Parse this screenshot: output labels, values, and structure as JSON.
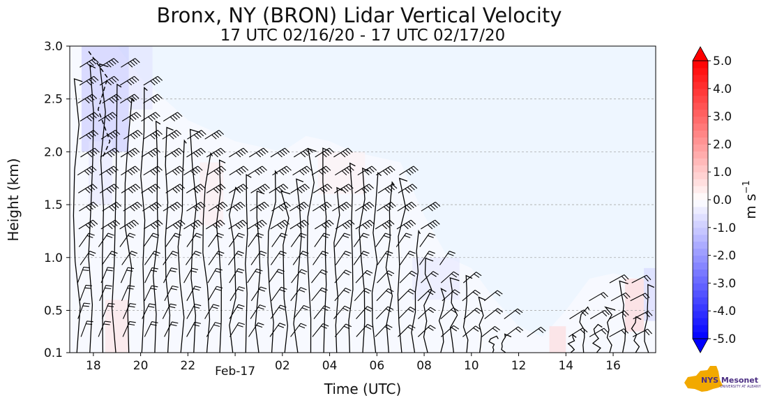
{
  "chart_data": {
    "type": "heatmap",
    "title": "Bronx, NY (BRON) Lidar Vertical Velocity",
    "subtitle": "17 UTC 02/16/20 - 17 UTC 02/17/20",
    "xlabel": "Time (UTC)",
    "ylabel": "Height (km)",
    "x_range_hours": [
      17,
      41.8
    ],
    "ylim": [
      0.1,
      3.0
    ],
    "x_ticks": [
      {
        "hour": 18,
        "label": "18"
      },
      {
        "hour": 20,
        "label": "20"
      },
      {
        "hour": 22,
        "label": "22"
      },
      {
        "hour": 24,
        "label": "Feb-17"
      },
      {
        "hour": 26,
        "label": "02"
      },
      {
        "hour": 28,
        "label": "04"
      },
      {
        "hour": 30,
        "label": "06"
      },
      {
        "hour": 32,
        "label": "08"
      },
      {
        "hour": 34,
        "label": "10"
      },
      {
        "hour": 36,
        "label": "12"
      },
      {
        "hour": 38,
        "label": "14"
      },
      {
        "hour": 40,
        "label": "16"
      }
    ],
    "y_ticks": [
      {
        "value": 0.1,
        "label": "0.1"
      },
      {
        "value": 0.5,
        "label": "0.5"
      },
      {
        "value": 1.0,
        "label": "1.0"
      },
      {
        "value": 1.5,
        "label": "1.5"
      },
      {
        "value": 2.0,
        "label": "2.0"
      },
      {
        "value": 2.5,
        "label": "2.5"
      },
      {
        "value": 3.0,
        "label": "3.0"
      }
    ],
    "grid": "horizontal dashed",
    "colorbar": {
      "label": "m s",
      "label_exponent": "−1",
      "range": [
        -5.0,
        5.0
      ],
      "extend": "both",
      "ticks": [
        {
          "value": 5.0,
          "label": "5.0"
        },
        {
          "value": 4.0,
          "label": "4.0"
        },
        {
          "value": 3.0,
          "label": "3.0"
        },
        {
          "value": 2.0,
          "label": "2.0"
        },
        {
          "value": 1.0,
          "label": "1.0"
        },
        {
          "value": 0.0,
          "label": "0.0"
        },
        {
          "value": -1.0,
          "label": "-1.0"
        },
        {
          "value": -2.0,
          "label": "-2.0"
        },
        {
          "value": -3.0,
          "label": "-3.0"
        },
        {
          "value": -4.0,
          "label": "-4.0"
        },
        {
          "value": -5.0,
          "label": "-5.0"
        }
      ],
      "colors": {
        "max": "#ff0000",
        "zero": "#ffffff",
        "min": "#0000ff"
      }
    },
    "data_top_km": [
      {
        "hour": 17.0,
        "top": 3.0
      },
      {
        "hour": 18.0,
        "top": 3.0
      },
      {
        "hour": 19.0,
        "top": 3.0
      },
      {
        "hour": 20.0,
        "top": 2.7
      },
      {
        "hour": 21.0,
        "top": 2.5
      },
      {
        "hour": 22.0,
        "top": 2.3
      },
      {
        "hour": 23.0,
        "top": 2.2
      },
      {
        "hour": 24.0,
        "top": 2.1
      },
      {
        "hour": 25.0,
        "top": 2.05
      },
      {
        "hour": 26.0,
        "top": 2.0
      },
      {
        "hour": 27.0,
        "top": 2.15
      },
      {
        "hour": 28.0,
        "top": 2.1
      },
      {
        "hour": 29.0,
        "top": 2.0
      },
      {
        "hour": 30.0,
        "top": 1.95
      },
      {
        "hour": 31.0,
        "top": 1.9
      },
      {
        "hour": 32.0,
        "top": 1.4
      },
      {
        "hour": 33.0,
        "top": 1.0
      },
      {
        "hour": 34.0,
        "top": 0.9
      },
      {
        "hour": 35.0,
        "top": 0.6
      },
      {
        "hour": 36.0,
        "top": 0.35
      },
      {
        "hour": 37.0,
        "top": 0.25
      },
      {
        "hour": 38.0,
        "top": 0.5
      },
      {
        "hour": 39.0,
        "top": 0.8
      },
      {
        "hour": 40.0,
        "top": 0.85
      },
      {
        "hour": 41.0,
        "top": 0.8
      },
      {
        "hour": 41.8,
        "top": 0.8
      }
    ],
    "velocity_regions": [
      {
        "h0": 17.5,
        "h1": 19.5,
        "z0": 2.0,
        "z1": 3.0,
        "w": -1.2
      },
      {
        "h0": 19.5,
        "h1": 20.5,
        "z0": 2.4,
        "z1": 3.0,
        "w": -0.6
      },
      {
        "h0": 17.8,
        "h1": 18.8,
        "z0": 1.5,
        "z1": 2.1,
        "w": -0.5
      },
      {
        "h0": 18.5,
        "h1": 19.5,
        "z0": 0.1,
        "z1": 0.6,
        "w": 0.6
      },
      {
        "h0": 22.5,
        "h1": 23.5,
        "z0": 1.3,
        "z1": 1.9,
        "w": 0.4
      },
      {
        "h0": 27.5,
        "h1": 29.5,
        "z0": 1.6,
        "z1": 2.0,
        "w": 0.3
      },
      {
        "h0": 31.5,
        "h1": 33.5,
        "z0": 0.6,
        "z1": 1.0,
        "w": -0.5
      },
      {
        "h0": 37.3,
        "h1": 38.0,
        "z0": 0.1,
        "z1": 0.35,
        "w": 0.8
      },
      {
        "h0": 40.5,
        "h1": 41.3,
        "z0": 0.3,
        "z1": 0.8,
        "w": 0.9
      },
      {
        "h0": 41.3,
        "h1": 41.8,
        "z0": 0.4,
        "z1": 0.9,
        "w": -0.9
      }
    ],
    "contour_series": [
      {
        "name": "zero-velocity contours",
        "style": "solid",
        "color": "#000000"
      },
      {
        "name": "negative-velocity contours",
        "style": "dashed",
        "color": "#000000"
      }
    ],
    "wind_barbs": {
      "present": true,
      "color": "#000000"
    }
  },
  "logo": {
    "name": "NYS Mesonet",
    "line1": "NYS Mesonet",
    "line2": "UNIVERSITY AT ALBANY",
    "color": "#4b2e83",
    "state_color": "#f2a900"
  },
  "colors": {
    "background_no_data": "#eef6ff",
    "grid": "#a9a9a9"
  }
}
